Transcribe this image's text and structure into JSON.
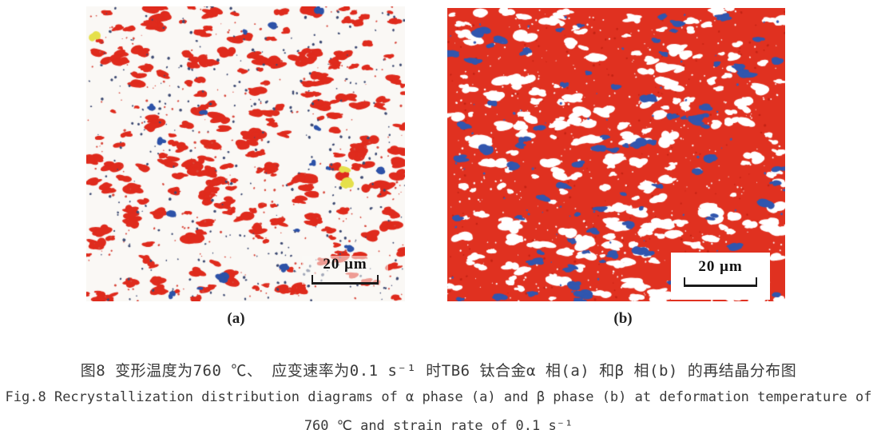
{
  "figure": {
    "panels": [
      {
        "label": "(a)",
        "scale_bar_label": "20 μm",
        "background_color": "#faf8f5",
        "scale_bar_boxed": false,
        "seed": 20871,
        "species": [
          {
            "name": "red-grains",
            "color": "#df2b1d",
            "count": 255,
            "rmin": 2.2,
            "rmax": 6.5,
            "elongated": true
          },
          {
            "name": "red-specks",
            "color": "#d8463a",
            "count": 260,
            "rmin": 0.6,
            "rmax": 1.6
          },
          {
            "name": "navy-dots",
            "color": "#3d4a72",
            "count": 330,
            "rmin": 0.7,
            "rmax": 1.9
          },
          {
            "name": "blue-grains",
            "color": "#2d52a8",
            "count": 17,
            "rmin": 2.6,
            "rmax": 5.5
          },
          {
            "name": "yellow-grains",
            "color": "#e5e04b",
            "count": 3,
            "rmin": 4.0,
            "rmax": 6.5
          }
        ]
      },
      {
        "label": "(b)",
        "scale_bar_label": "20 μm",
        "background_color": "#e03120",
        "scale_bar_boxed": true,
        "seed": 77113,
        "species": [
          {
            "name": "dark-red-specks",
            "color": "#c32314",
            "count": 220,
            "rmin": 0.6,
            "rmax": 1.6
          },
          {
            "name": "white-grains",
            "color": "#ffffff",
            "count": 235,
            "rmin": 2.2,
            "rmax": 7.0,
            "elongated": true
          },
          {
            "name": "white-specks",
            "color": "#ffffff",
            "count": 420,
            "rmin": 0.5,
            "rmax": 1.4
          },
          {
            "name": "blue-grains",
            "color": "#3156ae",
            "count": 85,
            "rmin": 2.2,
            "rmax": 5.5,
            "elongated": true
          },
          {
            "name": "blue-specks",
            "color": "#3b5cb4",
            "count": 60,
            "rmin": 0.8,
            "rmax": 1.8
          }
        ]
      }
    ],
    "caption_line1_cn": "图8 变形温度为760 ℃、 应变速率为0.1 s⁻¹  时TB6 钛合金α 相(a) 和β 相(b) 的再结晶分布图",
    "caption_line2_en": "Fig.8 Recrystallization distribution diagrams of α phase (a) and β phase (b) at deformation temperature of",
    "caption_line3_en": "760 ℃ and strain rate of 0.1 s⁻¹"
  }
}
